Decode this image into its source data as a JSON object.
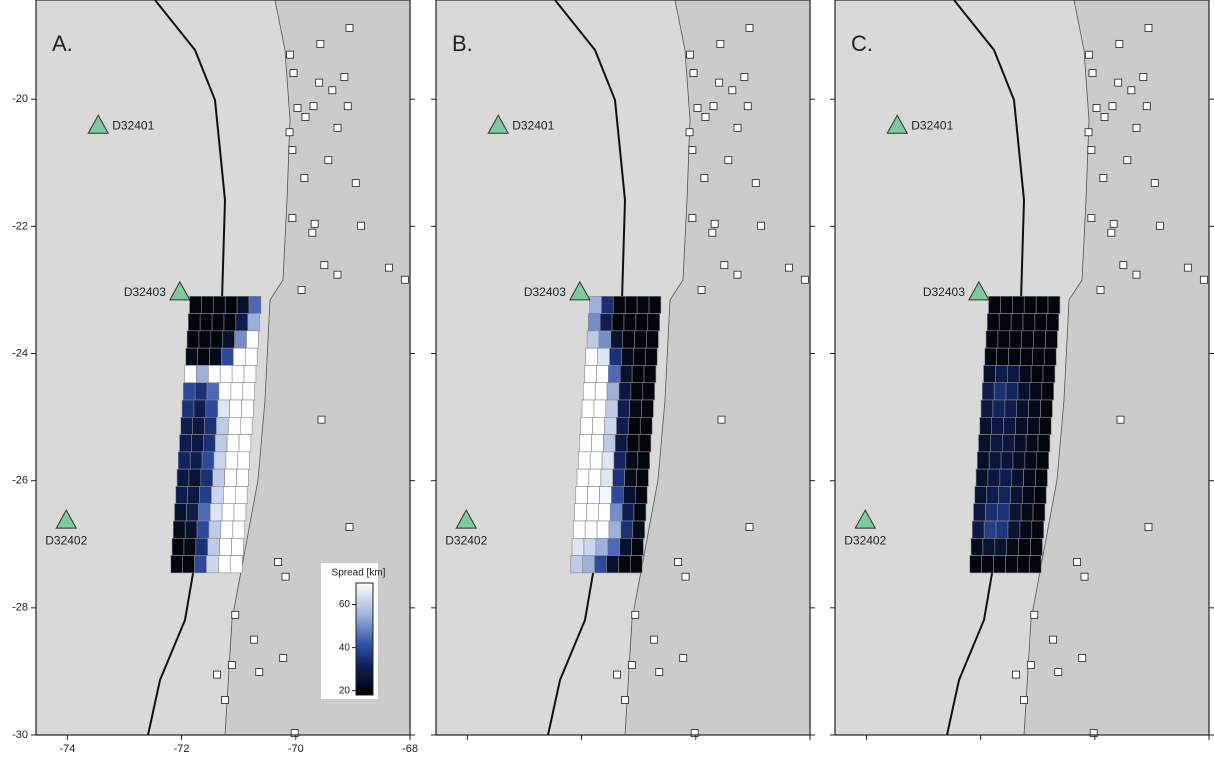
{
  "xlim": [
    -74.55,
    -68.0
  ],
  "ylim": [
    -30,
    -18.44
  ],
  "xticks": [
    -74,
    -72,
    -70,
    -68
  ],
  "yticks": [
    -20,
    -22,
    -24,
    -26,
    -28,
    -30
  ],
  "grid_extent": {
    "lon": [
      -71.85,
      -70.6
    ],
    "lat": [
      -23.1,
      -27.45
    ]
  },
  "colorbar": {
    "title": "Spread [km]",
    "lim": [
      18,
      70
    ],
    "ticks": [
      20,
      40,
      60
    ]
  },
  "stations": [
    {
      "name": "D32401",
      "lon": -73.46,
      "lat": -20.41
    },
    {
      "name": "D32403",
      "lon": -72.03,
      "lat": -23.03
    },
    {
      "name": "D32402",
      "lon": -74.02,
      "lat": -26.62
    }
  ],
  "sites": [
    [
      -69.57,
      -19.13
    ],
    [
      -69.06,
      -18.88
    ],
    [
      -70.1,
      -19.3
    ],
    [
      -70.04,
      -19.59
    ],
    [
      -69.59,
      -19.74
    ],
    [
      -69.15,
      -19.65
    ],
    [
      -69.36,
      -19.86
    ],
    [
      -69.97,
      -20.14
    ],
    [
      -69.69,
      -20.11
    ],
    [
      -69.09,
      -20.11
    ],
    [
      -69.83,
      -20.28
    ],
    [
      -69.27,
      -20.45
    ],
    [
      -70.11,
      -20.52
    ],
    [
      -70.06,
      -20.8
    ],
    [
      -69.43,
      -20.96
    ],
    [
      -69.85,
      -21.24
    ],
    [
      -68.95,
      -21.32
    ],
    [
      -70.06,
      -21.87
    ],
    [
      -69.67,
      -21.96
    ],
    [
      -69.71,
      -22.1
    ],
    [
      -68.86,
      -21.99
    ],
    [
      -69.5,
      -22.61
    ],
    [
      -69.27,
      -22.76
    ],
    [
      -68.37,
      -22.65
    ],
    [
      -68.09,
      -22.84
    ],
    [
      -69.9,
      -23.0
    ],
    [
      -69.55,
      -25.04
    ],
    [
      -69.06,
      -26.73
    ],
    [
      -70.31,
      -27.28
    ],
    [
      -70.18,
      -27.51
    ],
    [
      -71.06,
      -28.11
    ],
    [
      -70.73,
      -28.5
    ],
    [
      -70.22,
      -28.79
    ],
    [
      -71.12,
      -28.9
    ],
    [
      -70.64,
      -29.01
    ],
    [
      -71.38,
      -29.05
    ],
    [
      -71.24,
      -29.45
    ],
    [
      -70.02,
      -29.97
    ]
  ],
  "panels": [
    {
      "label": "A.",
      "grid_values": [
        [
          20,
          20,
          20,
          20,
          25,
          45
        ],
        [
          20,
          20,
          20,
          20,
          30,
          55
        ],
        [
          20,
          20,
          20,
          25,
          50,
          70
        ],
        [
          22,
          20,
          22,
          40,
          70,
          70
        ],
        [
          70,
          55,
          70,
          70,
          70,
          70
        ],
        [
          40,
          35,
          45,
          70,
          70,
          70
        ],
        [
          35,
          30,
          40,
          65,
          70,
          70
        ],
        [
          30,
          28,
          35,
          60,
          70,
          70
        ],
        [
          30,
          28,
          35,
          60,
          70,
          70
        ],
        [
          32,
          30,
          40,
          62,
          70,
          70
        ],
        [
          28,
          26,
          35,
          60,
          70,
          70
        ],
        [
          30,
          28,
          38,
          62,
          70,
          70
        ],
        [
          25,
          30,
          45,
          65,
          70,
          70
        ],
        [
          22,
          25,
          40,
          60,
          70,
          70
        ],
        [
          20,
          22,
          35,
          60,
          70,
          70
        ],
        [
          20,
          20,
          40,
          62,
          70,
          70
        ]
      ]
    },
    {
      "label": "B.",
      "grid_values": [
        [
          55,
          35,
          20,
          20,
          20,
          20
        ],
        [
          50,
          30,
          20,
          20,
          20,
          20
        ],
        [
          60,
          50,
          25,
          20,
          20,
          20
        ],
        [
          70,
          65,
          35,
          22,
          20,
          20
        ],
        [
          70,
          70,
          45,
          25,
          20,
          20
        ],
        [
          70,
          70,
          55,
          28,
          20,
          20
        ],
        [
          70,
          70,
          60,
          30,
          22,
          20
        ],
        [
          70,
          70,
          62,
          30,
          20,
          20
        ],
        [
          70,
          70,
          60,
          28,
          20,
          20
        ],
        [
          70,
          70,
          65,
          32,
          22,
          20
        ],
        [
          70,
          70,
          65,
          35,
          22,
          20
        ],
        [
          70,
          70,
          68,
          40,
          25,
          20
        ],
        [
          70,
          70,
          70,
          50,
          30,
          20
        ],
        [
          70,
          70,
          70,
          55,
          35,
          22
        ],
        [
          65,
          62,
          55,
          45,
          25,
          20
        ],
        [
          60,
          55,
          40,
          25,
          20,
          20
        ]
      ]
    },
    {
      "label": "C.",
      "grid_values": [
        [
          20,
          20,
          20,
          20,
          20,
          20
        ],
        [
          20,
          20,
          20,
          20,
          20,
          20
        ],
        [
          20,
          20,
          20,
          20,
          20,
          20
        ],
        [
          20,
          20,
          20,
          20,
          20,
          20
        ],
        [
          25,
          30,
          28,
          22,
          20,
          20
        ],
        [
          30,
          35,
          32,
          25,
          22,
          20
        ],
        [
          28,
          32,
          30,
          25,
          22,
          20
        ],
        [
          25,
          28,
          28,
          24,
          22,
          20
        ],
        [
          25,
          28,
          28,
          24,
          22,
          20
        ],
        [
          24,
          27,
          26,
          24,
          22,
          20
        ],
        [
          25,
          28,
          30,
          25,
          22,
          20
        ],
        [
          26,
          30,
          32,
          26,
          22,
          20
        ],
        [
          28,
          35,
          35,
          26,
          22,
          20
        ],
        [
          28,
          38,
          36,
          26,
          22,
          20
        ],
        [
          22,
          26,
          26,
          22,
          20,
          20
        ],
        [
          20,
          20,
          20,
          20,
          20,
          20
        ]
      ]
    }
  ]
}
